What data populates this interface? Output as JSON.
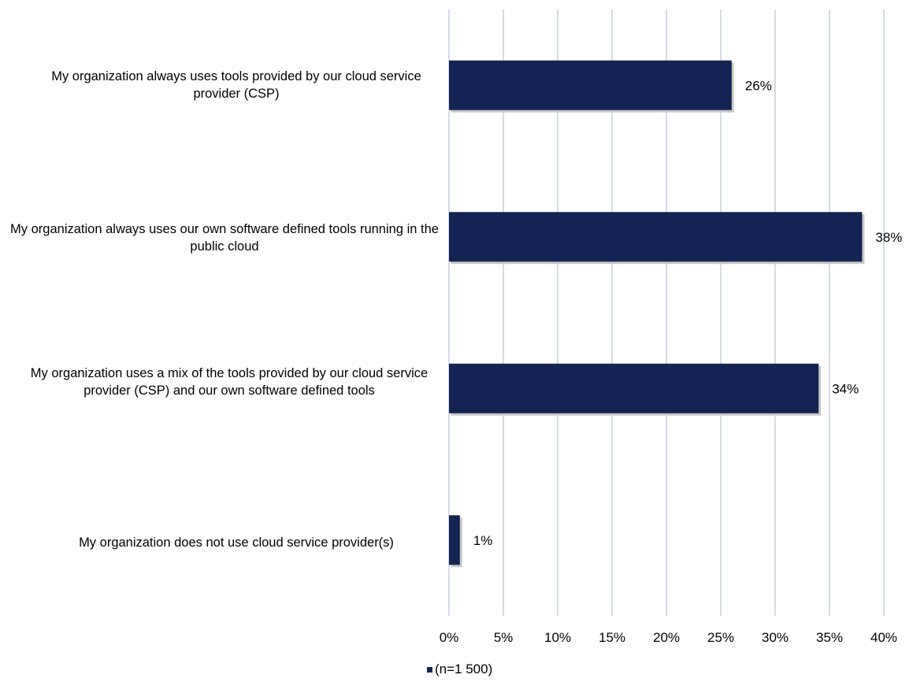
{
  "chart_data": {
    "type": "bar",
    "orientation": "horizontal",
    "categories": [
      "My organization always uses tools provided by our cloud service provider (CSP)",
      "My organization always uses our own software defined tools running in the public cloud",
      "My organization uses a mix of the tools provided by our cloud service provider (CSP) and our own software defined tools",
      "My organization does not use cloud service provider(s)"
    ],
    "series": [
      {
        "name": "(n=1 500)",
        "values": [
          26,
          38,
          34,
          1
        ]
      }
    ],
    "data_labels": [
      "26%",
      "38%",
      "34%",
      "1%"
    ],
    "xticks": [
      "0%",
      "5%",
      "10%",
      "15%",
      "20%",
      "25%",
      "30%",
      "35%",
      "40%"
    ],
    "xlim": [
      0,
      40
    ],
    "grid": true,
    "legend": "bottom",
    "title": "",
    "xlabel": "",
    "ylabel": "",
    "colors": {
      "bar": "#132453",
      "grid": "#c5cfe0",
      "shadow": "#c8c8c8"
    }
  }
}
